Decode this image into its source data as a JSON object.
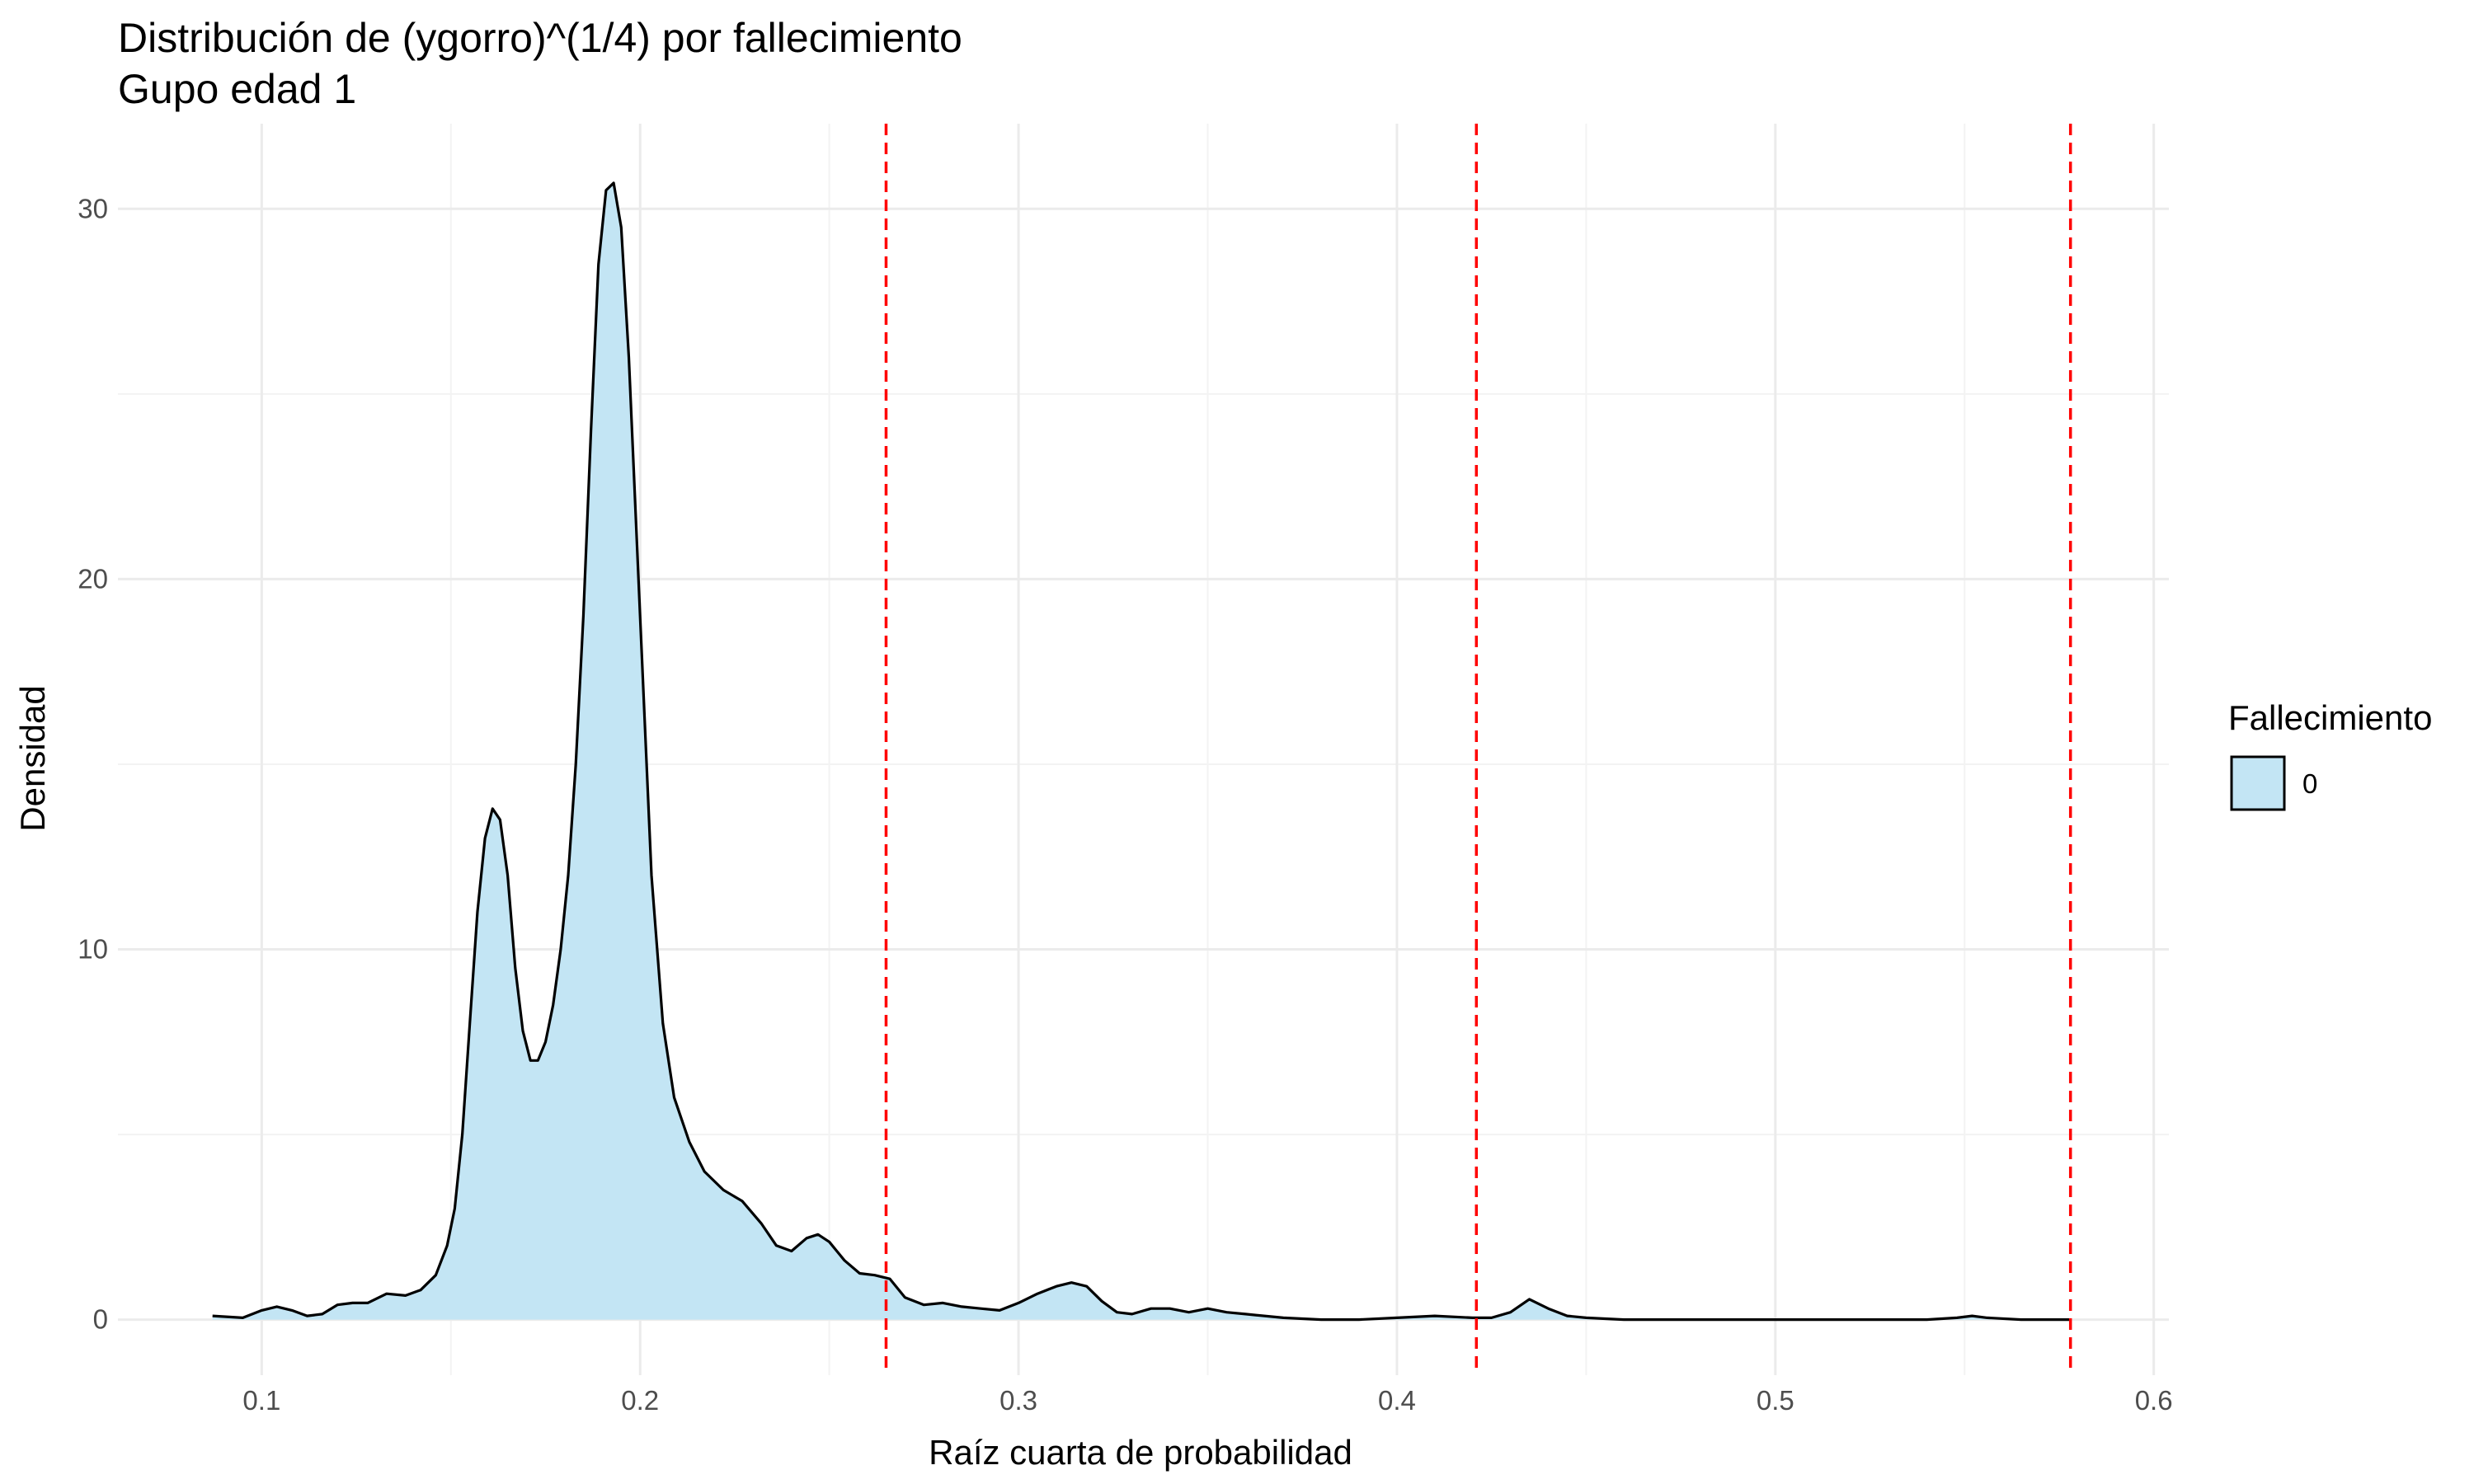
{
  "chart_data": {
    "type": "area",
    "title": "Distribución de (ygorro)^(1/4) por fallecimiento",
    "subtitle": "Gupo edad 1",
    "xlabel": "Raíz cuarta de probabilidad",
    "ylabel": "Densidad",
    "xlim": [
      0.062,
      0.604
    ],
    "ylim": [
      -1.5,
      32.3
    ],
    "x_ticks": [
      0.1,
      0.2,
      0.3,
      0.4,
      0.5,
      0.6
    ],
    "x_tick_labels": [
      "0.1",
      "0.2",
      "0.3",
      "0.4",
      "0.5",
      "0.6"
    ],
    "y_ticks": [
      0,
      10,
      20,
      30
    ],
    "y_tick_labels": [
      "0",
      "10",
      "20",
      "30"
    ],
    "grid": true,
    "legend": {
      "title": "Fallecimiento",
      "position": "right",
      "entries": [
        {
          "label": "0",
          "fill": "#c3e5f4",
          "stroke": "#000000"
        }
      ]
    },
    "vlines": {
      "x": [
        0.265,
        0.421,
        0.578
      ],
      "color": "#ff0000",
      "style": "dashed"
    },
    "series": [
      {
        "label": "0",
        "fill": "#c3e5f4",
        "stroke": "#000000",
        "points": [
          [
            0.087,
            0.1
          ],
          [
            0.095,
            0.05
          ],
          [
            0.1,
            0.25
          ],
          [
            0.104,
            0.35
          ],
          [
            0.108,
            0.25
          ],
          [
            0.112,
            0.1
          ],
          [
            0.116,
            0.15
          ],
          [
            0.12,
            0.4
          ],
          [
            0.124,
            0.45
          ],
          [
            0.128,
            0.45
          ],
          [
            0.133,
            0.7
          ],
          [
            0.138,
            0.65
          ],
          [
            0.142,
            0.8
          ],
          [
            0.146,
            1.2
          ],
          [
            0.149,
            2.0
          ],
          [
            0.151,
            3.0
          ],
          [
            0.153,
            5.0
          ],
          [
            0.155,
            8.0
          ],
          [
            0.157,
            11.0
          ],
          [
            0.159,
            13.0
          ],
          [
            0.161,
            13.8
          ],
          [
            0.163,
            13.5
          ],
          [
            0.165,
            12.0
          ],
          [
            0.167,
            9.5
          ],
          [
            0.169,
            7.8
          ],
          [
            0.171,
            7.0
          ],
          [
            0.173,
            7.0
          ],
          [
            0.175,
            7.5
          ],
          [
            0.177,
            8.5
          ],
          [
            0.179,
            10.0
          ],
          [
            0.181,
            12.0
          ],
          [
            0.183,
            15.0
          ],
          [
            0.185,
            19.0
          ],
          [
            0.187,
            24.0
          ],
          [
            0.189,
            28.5
          ],
          [
            0.191,
            30.5
          ],
          [
            0.193,
            30.7
          ],
          [
            0.195,
            29.5
          ],
          [
            0.197,
            26.0
          ],
          [
            0.2,
            19.0
          ],
          [
            0.203,
            12.0
          ],
          [
            0.206,
            8.0
          ],
          [
            0.209,
            6.0
          ],
          [
            0.213,
            4.8
          ],
          [
            0.217,
            4.0
          ],
          [
            0.222,
            3.5
          ],
          [
            0.227,
            3.2
          ],
          [
            0.232,
            2.6
          ],
          [
            0.236,
            2.0
          ],
          [
            0.24,
            1.85
          ],
          [
            0.244,
            2.2
          ],
          [
            0.247,
            2.3
          ],
          [
            0.25,
            2.1
          ],
          [
            0.254,
            1.6
          ],
          [
            0.258,
            1.25
          ],
          [
            0.262,
            1.2
          ],
          [
            0.266,
            1.1
          ],
          [
            0.27,
            0.6
          ],
          [
            0.275,
            0.4
          ],
          [
            0.28,
            0.45
          ],
          [
            0.285,
            0.35
          ],
          [
            0.29,
            0.3
          ],
          [
            0.295,
            0.25
          ],
          [
            0.3,
            0.45
          ],
          [
            0.305,
            0.7
          ],
          [
            0.31,
            0.9
          ],
          [
            0.314,
            1.0
          ],
          [
            0.318,
            0.9
          ],
          [
            0.322,
            0.5
          ],
          [
            0.326,
            0.2
          ],
          [
            0.33,
            0.15
          ],
          [
            0.335,
            0.3
          ],
          [
            0.34,
            0.3
          ],
          [
            0.345,
            0.2
          ],
          [
            0.35,
            0.3
          ],
          [
            0.355,
            0.2
          ],
          [
            0.36,
            0.15
          ],
          [
            0.37,
            0.05
          ],
          [
            0.38,
            0.0
          ],
          [
            0.39,
            0.0
          ],
          [
            0.4,
            0.05
          ],
          [
            0.41,
            0.1
          ],
          [
            0.42,
            0.05
          ],
          [
            0.425,
            0.05
          ],
          [
            0.43,
            0.2
          ],
          [
            0.435,
            0.55
          ],
          [
            0.44,
            0.3
          ],
          [
            0.445,
            0.1
          ],
          [
            0.45,
            0.05
          ],
          [
            0.46,
            0.0
          ],
          [
            0.48,
            0.0
          ],
          [
            0.5,
            0.0
          ],
          [
            0.52,
            0.0
          ],
          [
            0.54,
            0.0
          ],
          [
            0.548,
            0.05
          ],
          [
            0.552,
            0.1
          ],
          [
            0.556,
            0.05
          ],
          [
            0.565,
            0.0
          ],
          [
            0.578,
            0.0
          ]
        ]
      }
    ]
  }
}
